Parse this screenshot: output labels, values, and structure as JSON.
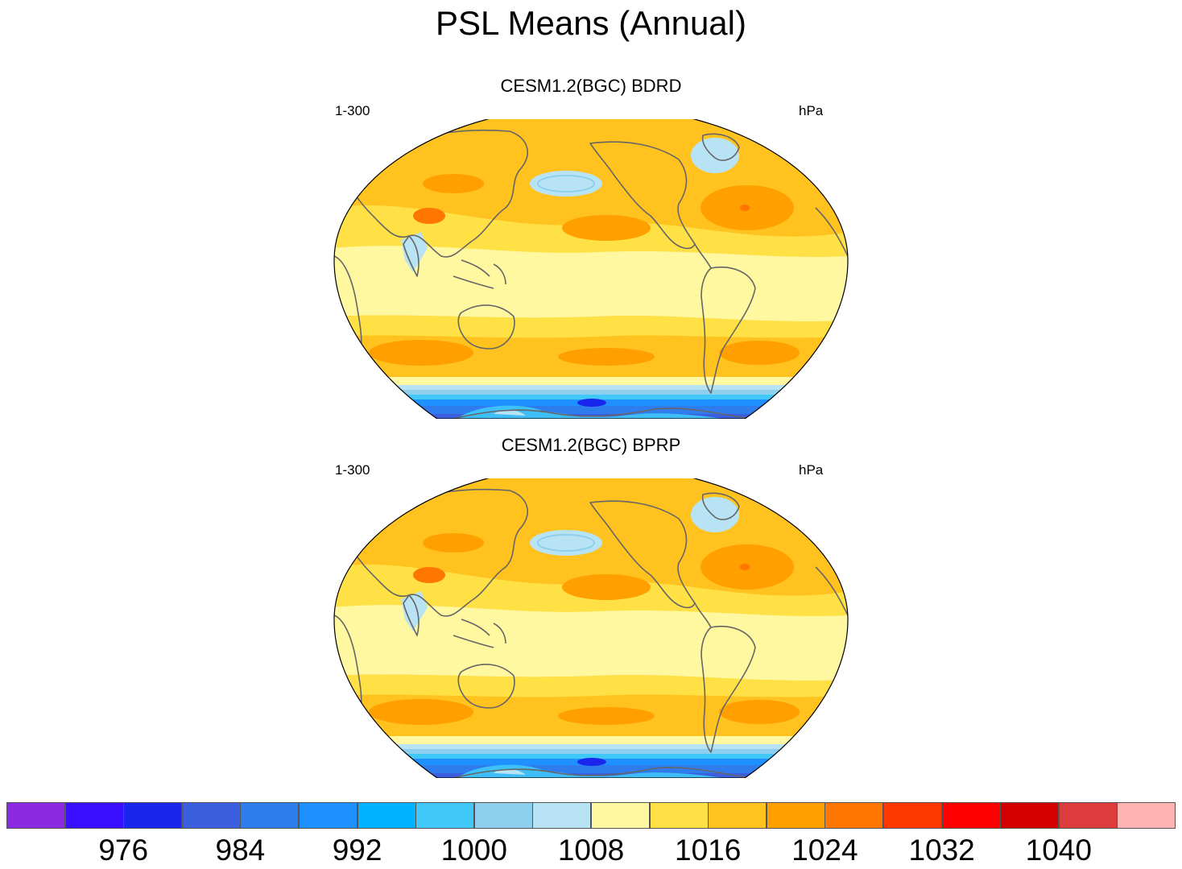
{
  "title": "PSL Means (Annual)",
  "panels": [
    {
      "title": "CESM1.2(BGC) BDRD",
      "left_label": "1-300",
      "right_label": "hPa"
    },
    {
      "title": "CESM1.2(BGC) BPRP",
      "left_label": "1-300",
      "right_label": "hPa"
    }
  ],
  "colorbar": {
    "colors": [
      "#8a2be2",
      "#3a0fff",
      "#1a25ee",
      "#3b5fdf",
      "#2f7ded",
      "#1e90ff",
      "#00b2ff",
      "#40c8f8",
      "#8ecfee",
      "#b8e3f5",
      "#fff8a0",
      "#ffe045",
      "#ffc21f",
      "#ffa000",
      "#ff7700",
      "#ff3800",
      "#ff0000",
      "#d40000",
      "#dc3c3c",
      "#ffb3b3"
    ],
    "labels": [
      "976",
      "984",
      "992",
      "1000",
      "1008",
      "1016",
      "1024",
      "1032",
      "1040"
    ]
  },
  "legend_colors": {
    "land_outline": "#666666",
    "ocean_base": "#fff8a0"
  }
}
